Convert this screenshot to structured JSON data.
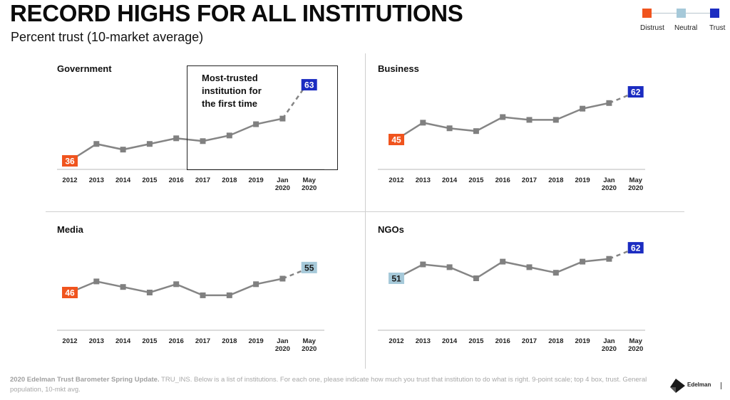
{
  "header": {
    "title": "RECORD HIGHS FOR ALL INSTITUTIONS",
    "subtitle": "Percent trust (10-market average)"
  },
  "legend": {
    "items": [
      {
        "label": "Distrust",
        "color": "#f0541e"
      },
      {
        "label": "Neutral",
        "color": "#a6c9d9"
      },
      {
        "label": "Trust",
        "color": "#1b2cc1"
      }
    ]
  },
  "callout": {
    "text": "Most-trusted\ninstitution for\nthe first time"
  },
  "footer": {
    "bold": "2020 Edelman Trust Barometer Spring Update.",
    "text": " TRU_INS. Below is a list of institutions. For each one, please indicate how much you trust that institution to do what is right. 9-point scale; top 4 box, trust. General population, 10-mkt avg."
  },
  "logo": {
    "text": "Edelman"
  },
  "colors": {
    "line": "#858585",
    "marker": "#808080",
    "axis": "#c8c8c8",
    "distrust": "#f0541e",
    "neutral": "#a6c9d9",
    "trust": "#1b2cc1"
  },
  "chart_data": [
    {
      "type": "line",
      "title": "Government",
      "categories": [
        "2012",
        "2013",
        "2014",
        "2015",
        "2016",
        "2017",
        "2018",
        "2019",
        "Jan\n2020",
        "May\n2020"
      ],
      "values": [
        36,
        42,
        40,
        42,
        44,
        43,
        45,
        49,
        51,
        63
      ],
      "labeled": {
        "first": {
          "value": "36",
          "class": "distrust"
        },
        "last": {
          "value": "63",
          "class": "trust"
        }
      },
      "last_segment": "dashed",
      "ylim": [
        30,
        70
      ]
    },
    {
      "type": "line",
      "title": "Business",
      "categories": [
        "2012",
        "2013",
        "2014",
        "2015",
        "2016",
        "2017",
        "2018",
        "2019",
        "Jan\n2020",
        "May\n2020"
      ],
      "values": [
        45,
        51,
        49,
        48,
        53,
        52,
        52,
        56,
        58,
        62
      ],
      "labeled": {
        "first": {
          "value": "45",
          "class": "distrust"
        },
        "last": {
          "value": "62",
          "class": "trust"
        }
      },
      "last_segment": "dashed",
      "ylim": [
        30,
        70
      ]
    },
    {
      "type": "line",
      "title": "Media",
      "categories": [
        "2012",
        "2013",
        "2014",
        "2015",
        "2016",
        "2017",
        "2018",
        "2019",
        "Jan\n2020",
        "May\n2020"
      ],
      "values": [
        46,
        50,
        48,
        46,
        49,
        45,
        45,
        49,
        51,
        55
      ],
      "labeled": {
        "first": {
          "value": "46",
          "class": "distrust"
        },
        "last": {
          "value": "55",
          "class": "neutral"
        }
      },
      "last_segment": "dashed",
      "ylim": [
        30,
        70
      ]
    },
    {
      "type": "line",
      "title": "NGOs",
      "categories": [
        "2012",
        "2013",
        "2014",
        "2015",
        "2016",
        "2017",
        "2018",
        "2019",
        "Jan\n2020",
        "May\n2020"
      ],
      "values": [
        51,
        56,
        55,
        51,
        57,
        55,
        53,
        57,
        58,
        62
      ],
      "labeled": {
        "first": {
          "value": "51",
          "class": "neutral"
        },
        "last": {
          "value": "62",
          "class": "trust"
        }
      },
      "last_segment": "dashed",
      "ylim": [
        30,
        70
      ]
    }
  ]
}
